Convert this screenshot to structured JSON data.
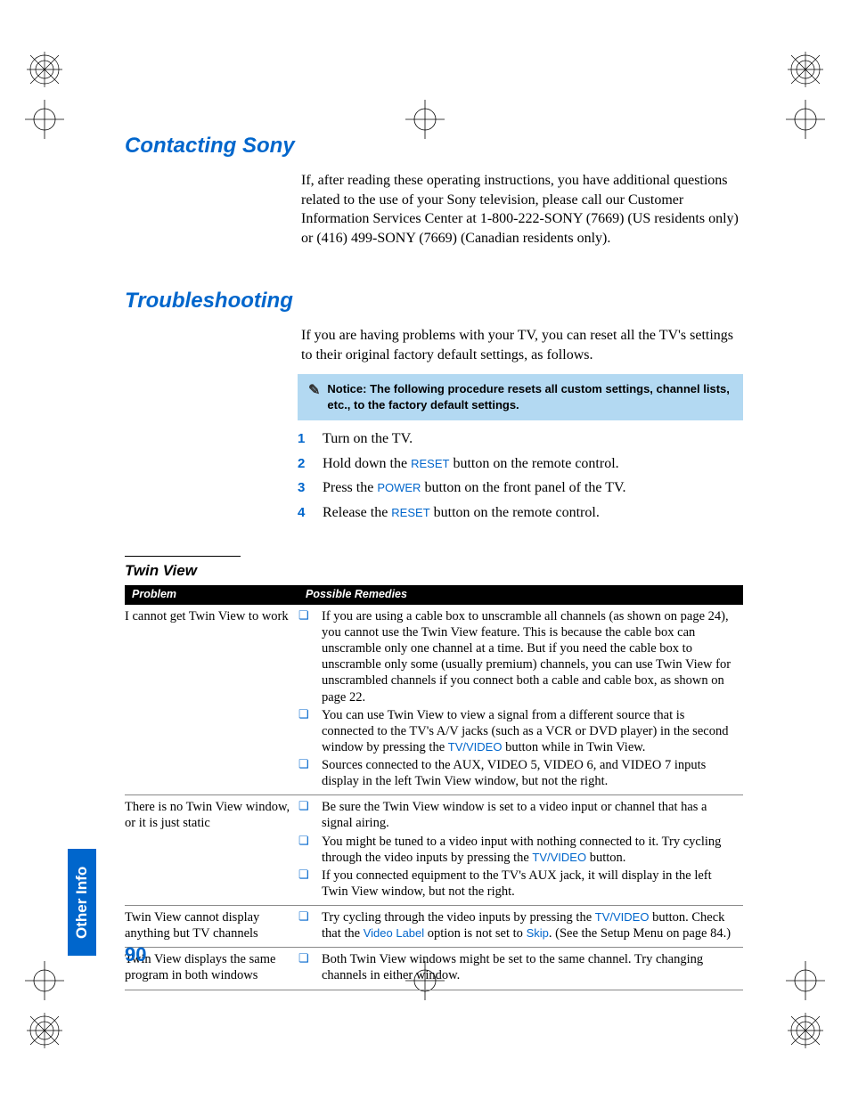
{
  "page_number": "90",
  "side_tab": "Other Info",
  "colors": {
    "accent_blue": "#0066cc",
    "notice_bg": "#b3d9f2",
    "table_header_bg": "#000000",
    "table_header_fg": "#ffffff",
    "body_text": "#000000",
    "rule": "#888888"
  },
  "sections": {
    "contacting": {
      "heading": "Contacting Sony",
      "body": "If, after reading these operating instructions, you have additional questions related to the use of your Sony television, please call our Customer Information Services Center at 1-800-222-SONY (7669) (US residents only) or (416) 499-SONY (7669) (Canadian residents only)."
    },
    "troubleshooting": {
      "heading": "Troubleshooting",
      "intro": "If you are having problems with your TV, you can reset all the TV's settings to their original factory default settings, as follows.",
      "notice": "Notice: The following procedure resets all custom settings, channel lists, etc., to the factory default settings.",
      "steps": [
        {
          "n": "1",
          "pre": "Turn on the TV.",
          "ui": "",
          "post": ""
        },
        {
          "n": "2",
          "pre": "Hold down the ",
          "ui": "RESET",
          "post": " button on the remote control."
        },
        {
          "n": "3",
          "pre": "Press the ",
          "ui": "POWER",
          "post": " button on the front panel of the TV."
        },
        {
          "n": "4",
          "pre": "Release the ",
          "ui": "RESET",
          "post": " button on the remote control."
        }
      ]
    },
    "twin_view": {
      "heading": "Twin View",
      "columns": [
        "Problem",
        "Possible Remedies"
      ],
      "rows": [
        {
          "problem": "I cannot get Twin View to work",
          "remedies": [
            {
              "text_a": "If you are using a cable box to unscramble all channels (as shown on page 24), you cannot use the Twin View feature. This is because the cable box can unscramble only one channel at a time. But if you need the cable box to unscramble only some (usually premium) channels, you can use Twin View for unscrambled channels if you connect both a cable and cable box, as shown on page 22."
            },
            {
              "text_a": "You can use Twin View to view a signal from a different source that is connected to the TV's A/V jacks (such as a VCR or DVD player) in the second window by pressing the ",
              "link": "TV/VIDEO",
              "text_b": " button while in Twin View."
            },
            {
              "text_a": "Sources connected to the AUX, VIDEO 5, VIDEO 6, and VIDEO 7 inputs display in the left Twin View window, but not the right."
            }
          ]
        },
        {
          "problem": "There is no Twin View window, or it is just static",
          "remedies": [
            {
              "text_a": "Be sure the Twin View window is set to a video input or channel that has a signal airing."
            },
            {
              "text_a": "You might be tuned to a video input with nothing connected to it. Try cycling through the video inputs by pressing the ",
              "link": "TV/VIDEO",
              "text_b": " button."
            },
            {
              "text_a": "If you connected equipment to the TV's AUX jack, it will display in the left Twin View window, but not the right."
            }
          ]
        },
        {
          "problem": "Twin View cannot display anything but TV channels",
          "remedies": [
            {
              "text_a": "Try cycling through the video inputs by pressing the ",
              "link": "TV/VIDEO",
              "text_b": " button. Check that the ",
              "link2": "Video Label",
              "text_c": " option is not set to ",
              "link3": "Skip",
              "text_d": ". (See the Setup Menu on page 84.)"
            }
          ]
        },
        {
          "problem": "Twin View displays the same program in both windows",
          "remedies": [
            {
              "text_a": "Both Twin View windows might be set to the same channel. Try changing channels in either window."
            }
          ]
        }
      ]
    }
  }
}
